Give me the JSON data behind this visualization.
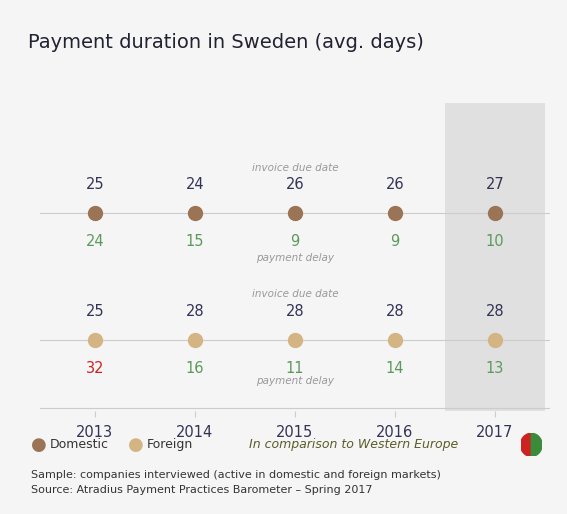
{
  "title": "Payment duration in Sweden (avg. days)",
  "years": [
    2013,
    2014,
    2015,
    2016,
    2017
  ],
  "domestic": {
    "invoice_due": [
      25,
      24,
      26,
      26,
      27
    ],
    "payment_delay": [
      24,
      15,
      9,
      9,
      10
    ],
    "color": "#9B7355",
    "line_color": "#cccccc"
  },
  "foreign": {
    "invoice_due": [
      25,
      28,
      28,
      28,
      28
    ],
    "payment_delay": [
      32,
      16,
      11,
      14,
      13
    ],
    "color": "#D4B483",
    "line_color": "#cccccc"
  },
  "delay_colors_domestic": [
    "#5C9A5C",
    "#5C9A5C",
    "#5C9A5C",
    "#5C9A5C",
    "#5C9A5C"
  ],
  "delay_colors_foreign": [
    "#CC2222",
    "#5C9A5C",
    "#5C9A5C",
    "#5C9A5C",
    "#5C9A5C"
  ],
  "highlight_color": "#E0E0E0",
  "bg_color": "#F5F5F5",
  "annotation_color": "#999999",
  "label_color_dark": "#333355",
  "green_color": "#5C9A5C",
  "red_color": "#CC2222",
  "footer_text": "Sample: companies interviewed (active in domestic and foreign markets)\nSource: Atradius Payment Practices Barometer – Spring 2017"
}
